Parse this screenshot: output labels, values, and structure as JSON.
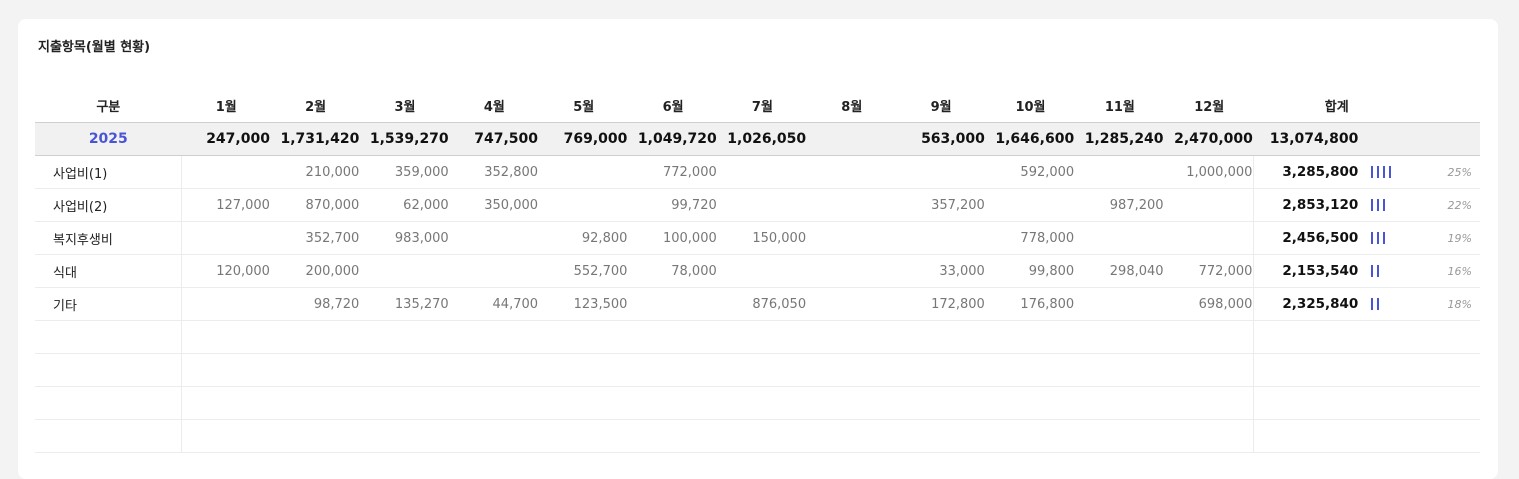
{
  "title": "지출항목(월별 현황)",
  "header": {
    "category": "구분",
    "months": [
      "1월",
      "2월",
      "3월",
      "4월",
      "5월",
      "6월",
      "7월",
      "8월",
      "9월",
      "10월",
      "11월",
      "12월"
    ],
    "total": "합계"
  },
  "year_row": {
    "year": "2025",
    "values": [
      "247,000",
      "1,731,420",
      "1,539,270",
      "747,500",
      "769,000",
      "1,049,720",
      "1,026,050",
      "",
      "563,000",
      "1,646,600",
      "1,285,240",
      "2,470,000"
    ],
    "total": "13,074,800"
  },
  "rows": [
    {
      "label": "사업비(1)",
      "values": [
        "",
        "210,000",
        "359,000",
        "352,800",
        "",
        "772,000",
        "",
        "",
        "",
        "592,000",
        "",
        "1,000,000"
      ],
      "total": "3,285,800",
      "bars": 4,
      "pct": "25%"
    },
    {
      "label": "사업비(2)",
      "values": [
        "127,000",
        "870,000",
        "62,000",
        "350,000",
        "",
        "99,720",
        "",
        "",
        "357,200",
        "",
        "987,200",
        ""
      ],
      "total": "2,853,120",
      "bars": 3,
      "pct": "22%"
    },
    {
      "label": "복지후생비",
      "values": [
        "",
        "352,700",
        "983,000",
        "",
        "92,800",
        "100,000",
        "150,000",
        "",
        "",
        "778,000",
        "",
        ""
      ],
      "total": "2,456,500",
      "bars": 3,
      "pct": "19%"
    },
    {
      "label": "식대",
      "values": [
        "120,000",
        "200,000",
        "",
        "",
        "552,700",
        "78,000",
        "",
        "",
        "33,000",
        "99,800",
        "298,040",
        "772,000"
      ],
      "total": "2,153,540",
      "bars": 2,
      "pct": "16%"
    },
    {
      "label": "기타",
      "values": [
        "",
        "98,720",
        "135,270",
        "44,700",
        "123,500",
        "",
        "876,050",
        "",
        "172,800",
        "176,800",
        "",
        "698,000"
      ],
      "total": "2,325,840",
      "bars": 2,
      "pct": "18%"
    }
  ],
  "colors": {
    "accent": "#4a55d6",
    "year_row_bg": "#f1f1f1",
    "page_bg": "#f3f3f3"
  }
}
